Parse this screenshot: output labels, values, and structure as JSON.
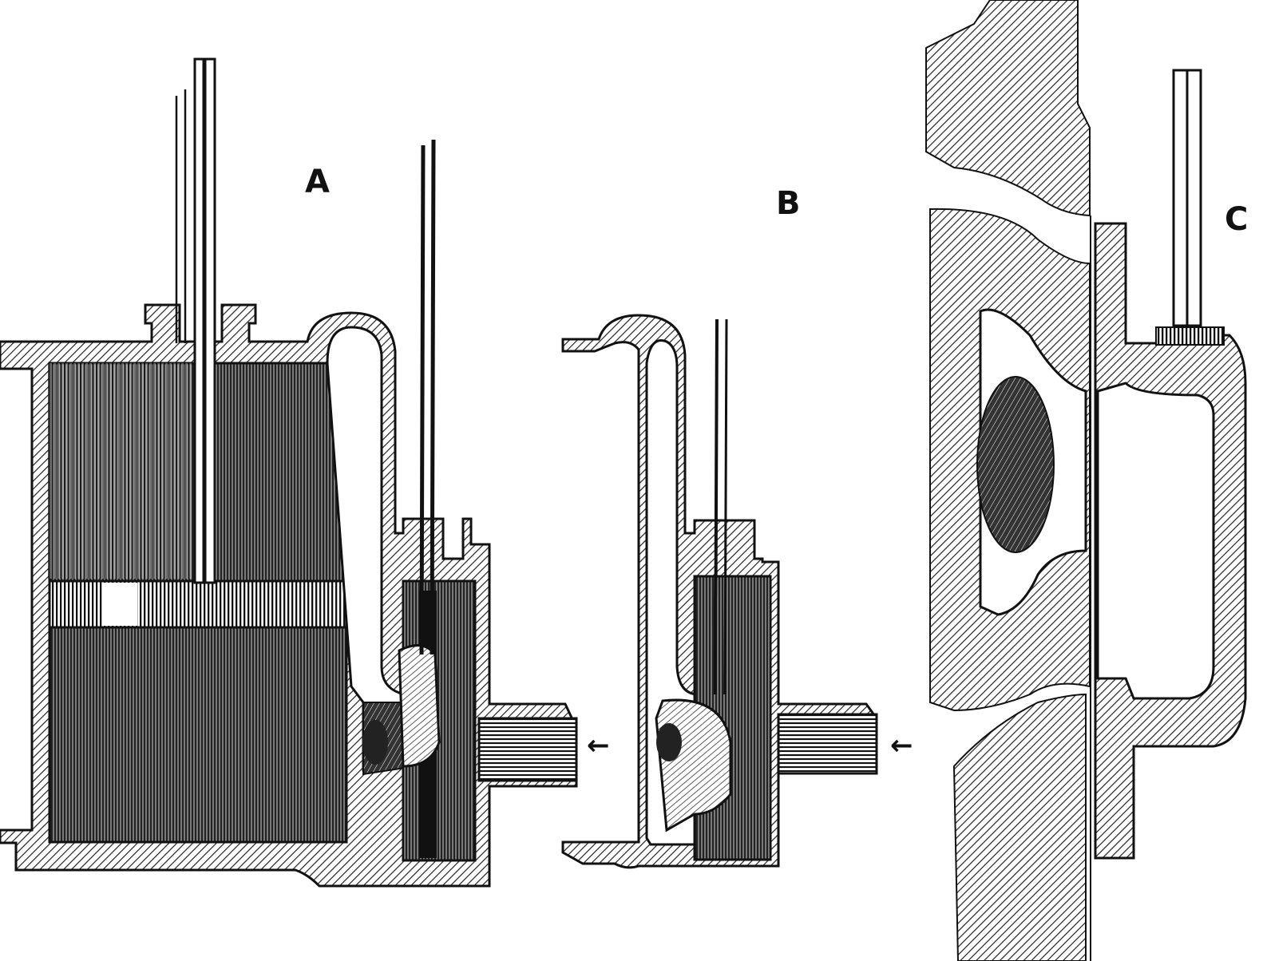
{
  "figure": {
    "labels": {
      "a": "A",
      "b": "B",
      "c": "C"
    },
    "arrows": {
      "a": "←",
      "b": "←"
    },
    "colors": {
      "ink": "#111111",
      "hatch": "#222222",
      "paper": "#ffffff"
    }
  }
}
